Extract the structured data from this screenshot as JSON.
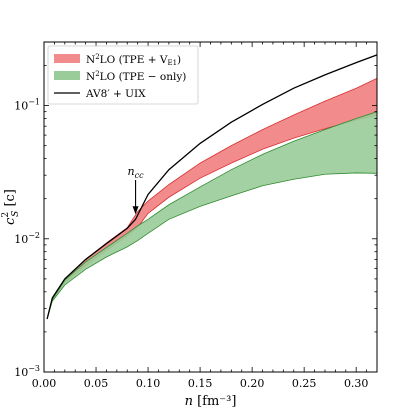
{
  "chart_data": {
    "type": "area",
    "xlabel": {
      "symbol": "n",
      "unit": "[fm⁻³]"
    },
    "ylabel": {
      "symbol": "c",
      "sup": "2",
      "sub": "S",
      "unit": "[c]"
    },
    "yscale": "log",
    "xlim": [
      0.0,
      0.32
    ],
    "ylim": [
      0.001,
      0.3
    ],
    "x_ticks": [
      0.0,
      0.05,
      0.1,
      0.15,
      0.2,
      0.25,
      0.3
    ],
    "x_tick_labels": [
      "0.00",
      "0.05",
      "0.10",
      "0.15",
      "0.20",
      "0.25",
      "0.30"
    ],
    "y_major_ticks": [
      0.001,
      0.01,
      0.1
    ],
    "y_tick_labels": [
      {
        "base": "10",
        "exp": "−3"
      },
      {
        "base": "10",
        "exp": "−2"
      },
      {
        "base": "10",
        "exp": "−1"
      }
    ],
    "grid": false,
    "legend_position": "top-left",
    "annotation": {
      "label": "n",
      "sub": "cc",
      "x": 0.088,
      "y": 0.0145,
      "arrow": true
    },
    "series": [
      {
        "name": "N²LO (TPE + V_E1)",
        "legend": {
          "pre": "N",
          "sup": "2",
          "mid": "LO (TPE + V",
          "sub": "E1",
          "post": ")"
        },
        "kind": "band",
        "fill": "#f28b8b",
        "stroke": "#d93030",
        "x": [
          0.003,
          0.008,
          0.02,
          0.04,
          0.06,
          0.08,
          0.09,
          0.1,
          0.12,
          0.15,
          0.18,
          0.21,
          0.24,
          0.27,
          0.3,
          0.32
        ],
        "lower": [
          0.0025,
          0.0035,
          0.0047,
          0.0063,
          0.0082,
          0.0105,
          0.0122,
          0.0155,
          0.0205,
          0.0285,
          0.037,
          0.047,
          0.057,
          0.067,
          0.078,
          0.085
        ],
        "upper": [
          0.0025,
          0.0036,
          0.005,
          0.007,
          0.0093,
          0.0121,
          0.016,
          0.0192,
          0.0255,
          0.037,
          0.05,
          0.066,
          0.085,
          0.108,
          0.135,
          0.16
        ]
      },
      {
        "name": "N²LO (TPE − only)",
        "legend": {
          "pre": "N",
          "sup": "2",
          "mid": "LO (TPE − only)",
          "sub": "",
          "post": ""
        },
        "kind": "band",
        "fill": "#99cc99",
        "stroke": "#2e8b2e",
        "x": [
          0.003,
          0.008,
          0.02,
          0.04,
          0.06,
          0.08,
          0.09,
          0.1,
          0.12,
          0.15,
          0.18,
          0.21,
          0.24,
          0.27,
          0.3,
          0.32
        ],
        "lower": [
          0.0025,
          0.0034,
          0.0045,
          0.0059,
          0.0073,
          0.0087,
          0.0097,
          0.011,
          0.014,
          0.0175,
          0.021,
          0.025,
          0.028,
          0.0305,
          0.0312,
          0.031
        ],
        "upper": [
          0.0025,
          0.0035,
          0.0049,
          0.0067,
          0.0086,
          0.011,
          0.0125,
          0.014,
          0.018,
          0.0245,
          0.033,
          0.043,
          0.054,
          0.066,
          0.08,
          0.09
        ]
      },
      {
        "name": "AV8′ + UIX",
        "legend": {
          "pre": "AV8′ + UIX",
          "sup": "",
          "mid": "",
          "sub": "",
          "post": ""
        },
        "kind": "line",
        "stroke": "#000000",
        "x": [
          0.003,
          0.008,
          0.02,
          0.04,
          0.06,
          0.08,
          0.088,
          0.1,
          0.12,
          0.15,
          0.18,
          0.21,
          0.24,
          0.27,
          0.3,
          0.32
        ],
        "y": [
          0.0025,
          0.0036,
          0.005,
          0.007,
          0.0092,
          0.012,
          0.014,
          0.0215,
          0.033,
          0.052,
          0.075,
          0.102,
          0.135,
          0.17,
          0.21,
          0.24
        ]
      }
    ]
  }
}
